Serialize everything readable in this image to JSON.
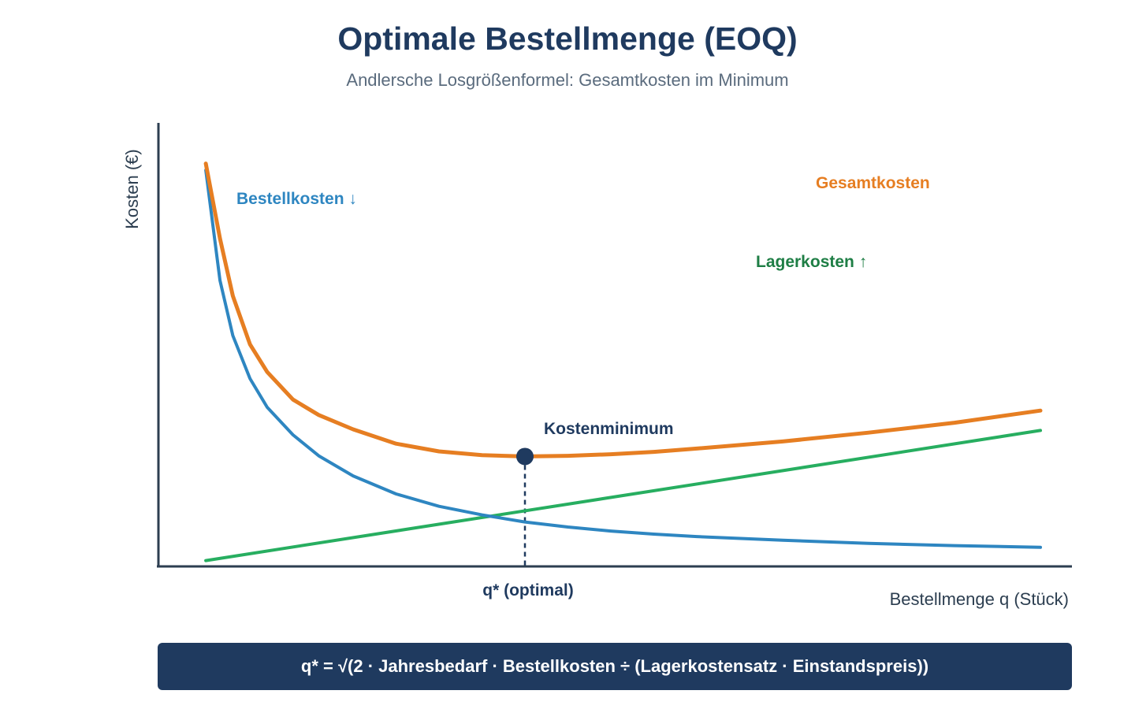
{
  "title": "Optimale Bestellmenge (EOQ)",
  "subtitle": "Andlersche Losgrößenformel: Gesamtkosten im Minimum",
  "formula": "q* = √(2 · Jahresbedarf · Bestellkosten ÷ (Lagerkostensatz · Einstandspreis))",
  "colors": {
    "ordering": "#2e86c1",
    "holding": "#27ae60",
    "total": "#e67e22",
    "dark": "#1f3a5f",
    "axis": "#2c3e50"
  },
  "chart_data": {
    "type": "line",
    "xlabel": "Bestellmenge q (Stück)",
    "ylabel": "Kosten (€)",
    "xlim": [
      0,
      20
    ],
    "ylim": [
      0,
      20
    ],
    "optimum": {
      "x": 8,
      "label": "Kostenminimum",
      "tick_label": "q* (optimal)"
    },
    "series": [
      {
        "name": "Bestellkosten ↓",
        "key": "ordering",
        "x": [
          0.57,
          0.9,
          1.2,
          1.6,
          2.0,
          2.6,
          3.2,
          4.0,
          5.0,
          6.0,
          7.0,
          8.0,
          9.0,
          10.0,
          11.0,
          12.0,
          14.0,
          16.0,
          18.0,
          20.0
        ],
        "y": [
          18.0,
          13.0,
          10.5,
          8.55,
          7.25,
          6.0,
          5.05,
          4.14,
          3.32,
          2.76,
          2.37,
          2.05,
          1.82,
          1.64,
          1.5,
          1.39,
          1.22,
          1.08,
          0.98,
          0.9
        ]
      },
      {
        "name": "Lagerkosten ↑",
        "key": "holding",
        "x": [
          0.57,
          20.0
        ],
        "y": [
          0.3,
          6.2
        ]
      },
      {
        "name": "Gesamtkosten",
        "key": "total",
        "x": [
          0.57,
          0.9,
          1.2,
          1.6,
          2.0,
          2.6,
          3.2,
          4.0,
          5.0,
          6.0,
          7.0,
          8.0,
          9.0,
          10.0,
          11.0,
          12.0,
          14.0,
          16.0,
          18.0,
          20.0
        ],
        "y": [
          18.3,
          14.9,
          12.3,
          10.1,
          8.85,
          7.6,
          6.9,
          6.25,
          5.6,
          5.25,
          5.08,
          5.02,
          5.05,
          5.12,
          5.23,
          5.38,
          5.7,
          6.1,
          6.55,
          7.1
        ]
      }
    ]
  }
}
